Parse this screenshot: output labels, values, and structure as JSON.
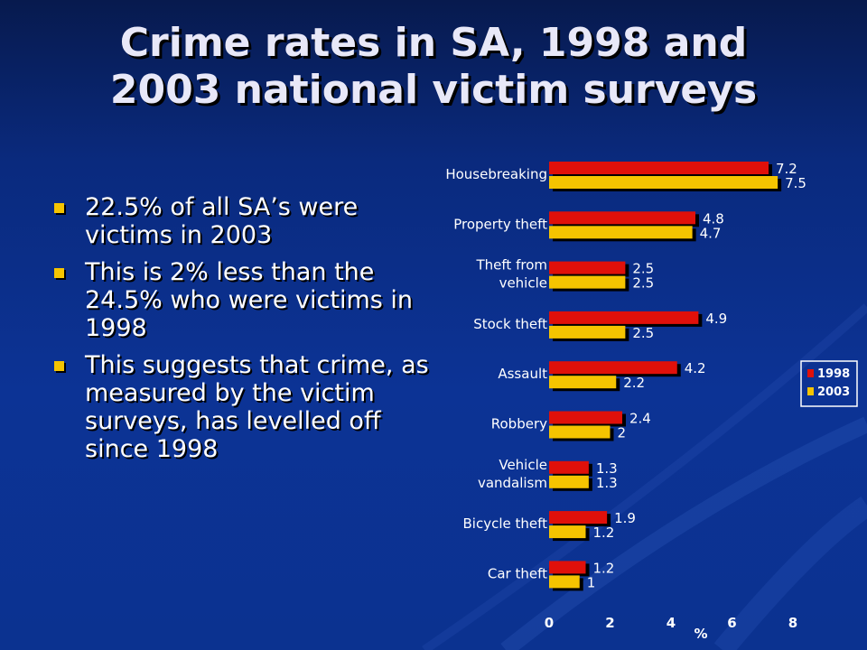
{
  "slide": {
    "title_line1": "Crime rates in SA, 1998 and",
    "title_line2": "2003 national victim surveys",
    "bullets": [
      "22.5% of all SA’s were victims in 2003",
      "This is 2% less than the 24.5% who were victims in 1998",
      "This suggests that crime, as measured by the victim surveys, has levelled off since 1998"
    ]
  },
  "chart_data": {
    "type": "bar",
    "orientation": "horizontal",
    "categories": [
      [
        "Housebreaking"
      ],
      [
        "Property theft"
      ],
      [
        "Theft from",
        "vehicle"
      ],
      [
        "Stock theft"
      ],
      [
        "Assault"
      ],
      [
        "Robbery"
      ],
      [
        "Vehicle",
        "vandalism"
      ],
      [
        "Bicycle theft"
      ],
      [
        "Car theft"
      ]
    ],
    "series": [
      {
        "name": "1998",
        "color": "#e0100a",
        "values": [
          7.2,
          4.8,
          2.5,
          4.9,
          4.2,
          2.4,
          1.3,
          1.9,
          1.2
        ]
      },
      {
        "name": "2003",
        "color": "#f5c400",
        "values": [
          7.5,
          4.7,
          2.5,
          2.5,
          2.2,
          2,
          1.3,
          1.2,
          1
        ]
      }
    ],
    "value_labels": [
      [
        "7.2",
        "4.8",
        "2.5",
        "4.9",
        "4.2",
        "2.4",
        "1.3",
        "1.9",
        "1.2"
      ],
      [
        "7.5",
        "4.7",
        "2.5",
        "2.5",
        "2.2",
        "2",
        "1.3",
        "1.2",
        "1"
      ]
    ],
    "xlim": [
      0,
      8
    ],
    "xticks": [
      "0",
      "2",
      "4",
      "6",
      "8"
    ],
    "xlabel": "%",
    "legend_position": "right",
    "grid": false
  }
}
